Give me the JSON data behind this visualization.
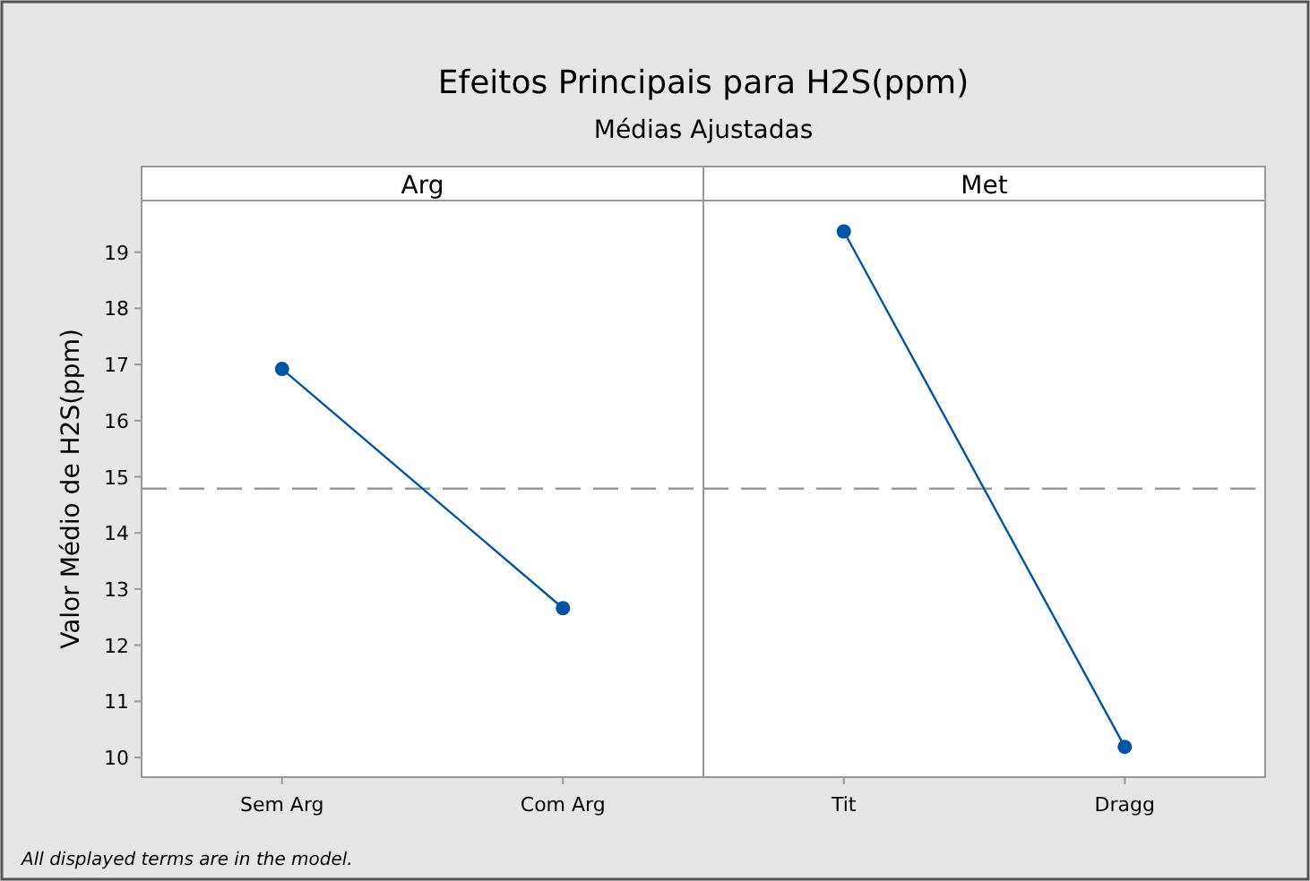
{
  "chart_data": [
    {
      "type": "line",
      "title": "Efeitos Principais para H2S(ppm)",
      "subtitle": "Médias Ajustadas",
      "xlabel": "Arg",
      "ylabel": "Valor Médio de H2S(ppm)",
      "annotations": [
        "All displayed terms are in the model."
      ],
      "categories": [
        "Sem Arg",
        "Com Arg"
      ],
      "series": [
        {
          "color": "#0054a6",
          "values": [
            16.92,
            12.66
          ]
        }
      ],
      "ylim": [
        9.65,
        19.92
      ],
      "yticks": [
        10,
        11,
        12,
        13,
        14,
        15,
        16,
        17,
        18,
        19
      ],
      "marker": "circle",
      "line_style": "solid",
      "grid": false,
      "ref_lines": [
        {
          "axis": "y",
          "value": 14.79,
          "color": "#999999",
          "line_style": "dashed"
        }
      ]
    },
    {
      "type": "line",
      "xlabel": "Met",
      "categories": [
        "Tit",
        "Dragg"
      ],
      "series": [
        {
          "color": "#0054a6",
          "values": [
            19.37,
            10.19
          ]
        }
      ],
      "ylim": [
        9.65,
        19.92
      ],
      "tick_labels": "x",
      "marker": "circle",
      "line_style": "solid",
      "grid": false,
      "ref_lines": [
        {
          "axis": "y",
          "value": 14.79,
          "color": "#999999",
          "line_style": "dashed"
        }
      ]
    }
  ]
}
